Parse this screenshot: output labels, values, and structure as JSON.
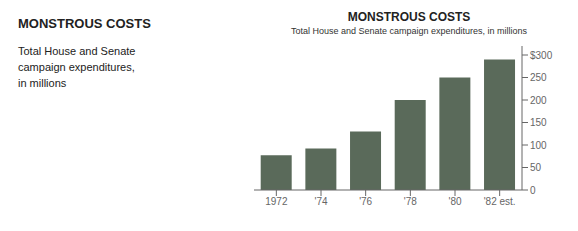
{
  "chart_data": {
    "type": "bar",
    "title": "MONSTROUS COSTS",
    "subtitle": "Total House and Senate campaign expenditures, in millions",
    "annotations": [
      "MONSTROUS COSTS",
      "Total House and Senate",
      "campaign expenditures,",
      "in millions"
    ],
    "categories": [
      "1972",
      "'74",
      "'76",
      "'78",
      "'80",
      "'82 est."
    ],
    "values": [
      77,
      92,
      130,
      200,
      250,
      290
    ],
    "color": "#5a6a5a",
    "ylim": [
      0,
      320
    ],
    "yticks": [
      0,
      50,
      100,
      150,
      200,
      250,
      {
        "value": 300,
        "label": "$300"
      }
    ],
    "grid": false
  }
}
